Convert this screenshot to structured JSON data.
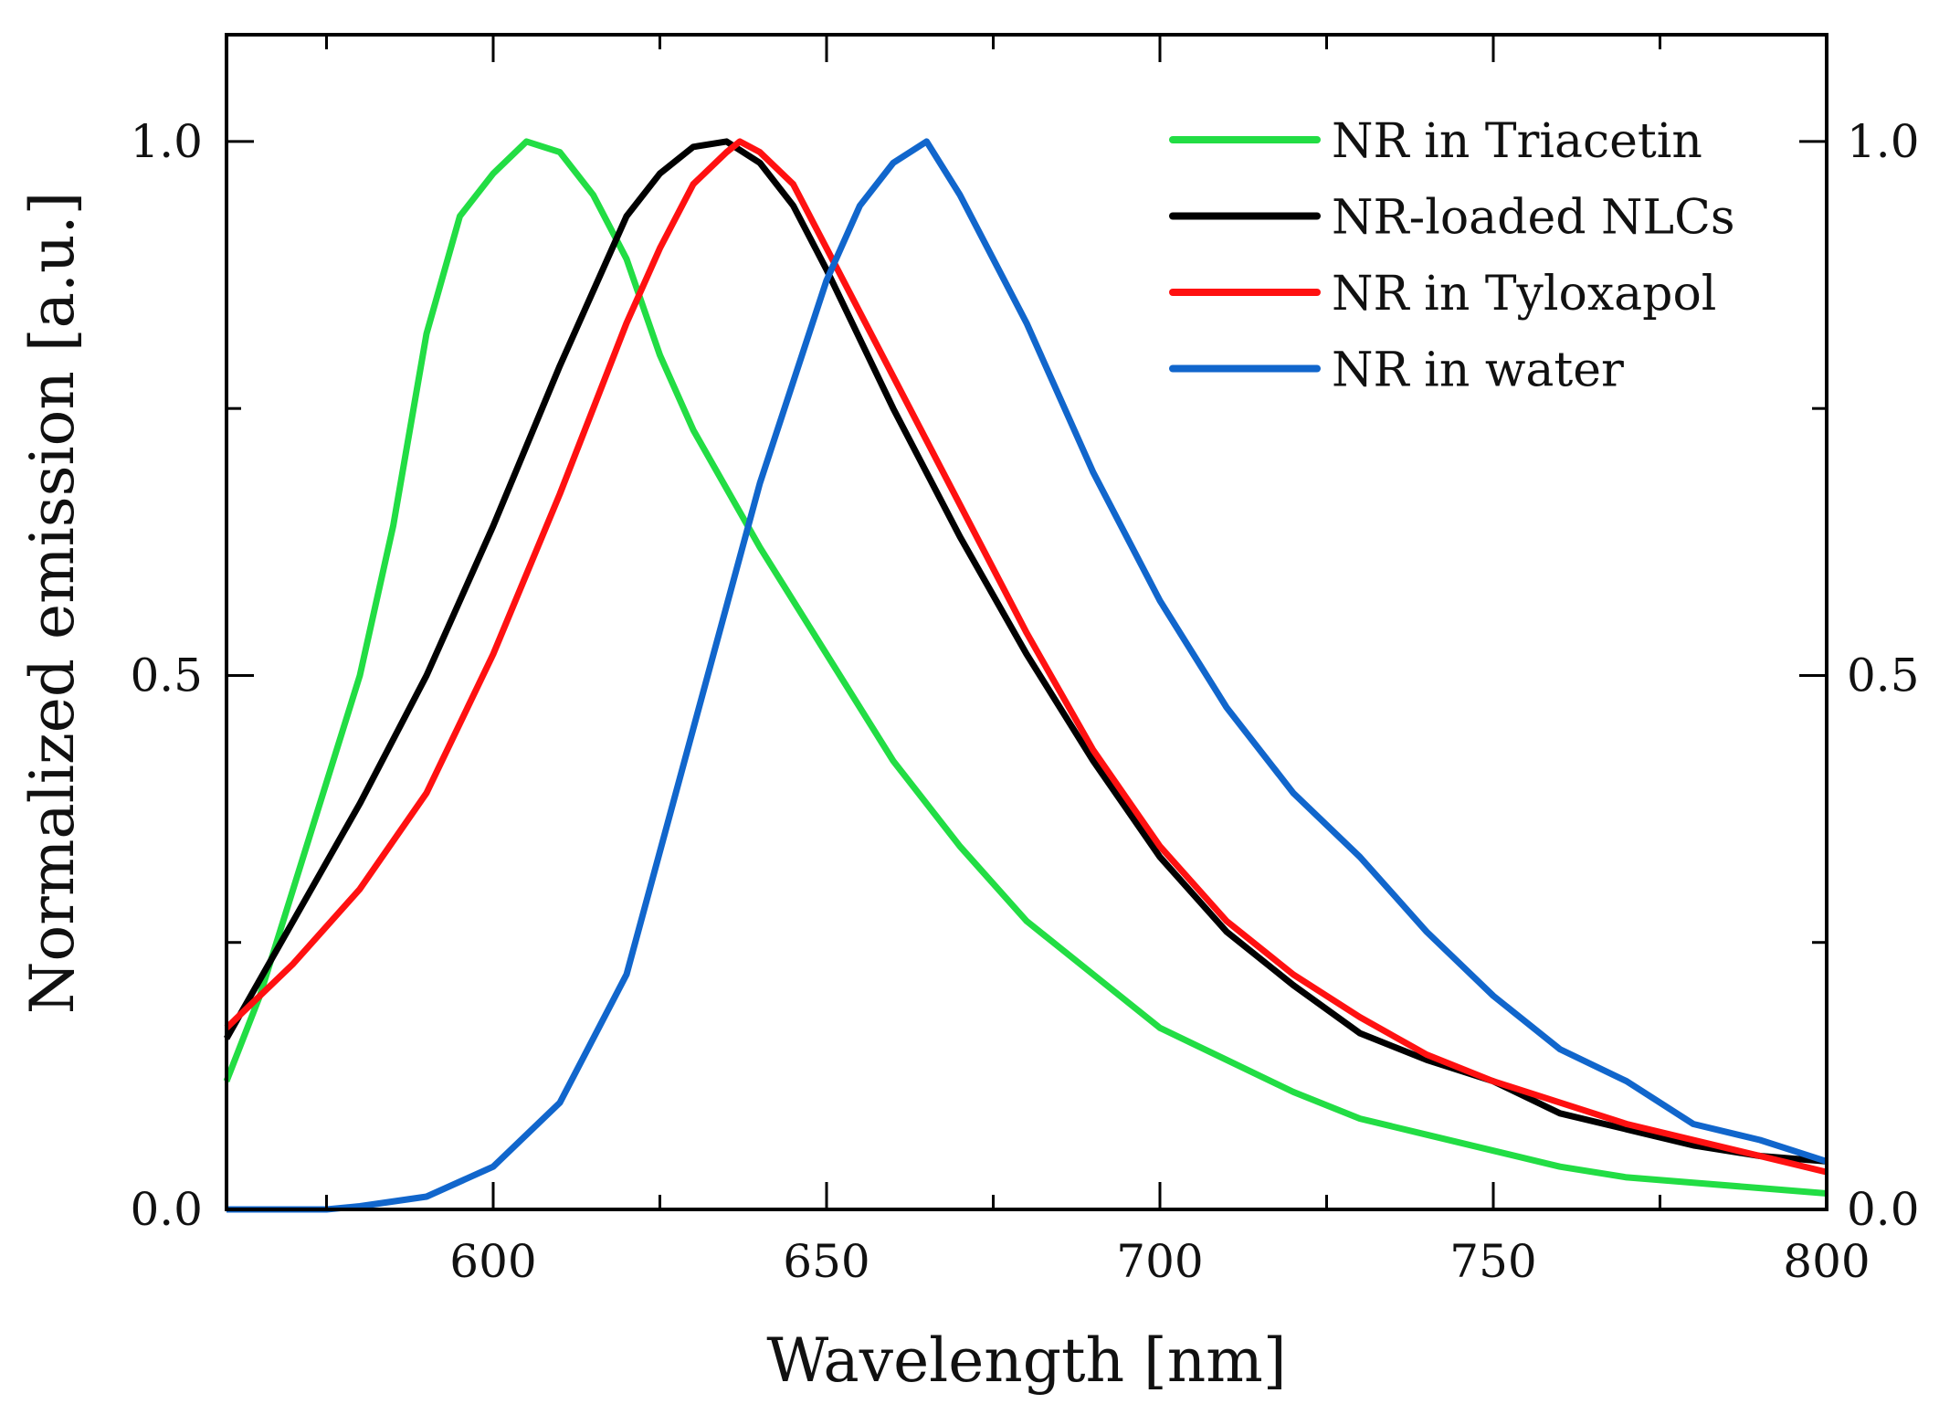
{
  "chart_data": {
    "type": "line",
    "title": "",
    "xlabel": "Wavelength [nm]",
    "ylabel": "Normalized emission [a.u.]",
    "xlim": [
      560,
      800
    ],
    "ylim": [
      0,
      1.1
    ],
    "x_ticks": [
      600,
      650,
      700,
      750,
      800
    ],
    "x_tick_labels": [
      "600",
      "650",
      "700",
      "750",
      "800"
    ],
    "x_minor_ticks": [
      575,
      625,
      675,
      725,
      775
    ],
    "y_ticks": [
      0,
      0.5,
      1.0
    ],
    "y_tick_labels": [
      "0.0",
      "0.5",
      "1.0"
    ],
    "y_minor_ticks": [
      0.25,
      0.75
    ],
    "grid": false,
    "legend_position": "top-right",
    "series": [
      {
        "name": "NR in Triacetin",
        "color": "#22dd44",
        "x": [
          560,
          565,
          570,
          575,
          580,
          585,
          590,
          595,
          600,
          605,
          610,
          615,
          620,
          625,
          630,
          640,
          650,
          660,
          670,
          680,
          690,
          700,
          710,
          720,
          730,
          740,
          750,
          760,
          770,
          780,
          790,
          800
        ],
        "y": [
          0.12,
          0.2,
          0.3,
          0.4,
          0.5,
          0.64,
          0.82,
          0.93,
          0.97,
          1.0,
          0.99,
          0.95,
          0.89,
          0.8,
          0.73,
          0.62,
          0.52,
          0.42,
          0.34,
          0.27,
          0.22,
          0.17,
          0.14,
          0.11,
          0.085,
          0.07,
          0.055,
          0.04,
          0.03,
          0.025,
          0.02,
          0.015
        ]
      },
      {
        "name": "NR-loaded NLCs",
        "color": "#000000",
        "x": [
          560,
          570,
          580,
          590,
          600,
          610,
          620,
          625,
          630,
          635,
          640,
          645,
          650,
          660,
          670,
          680,
          690,
          700,
          710,
          720,
          730,
          740,
          750,
          760,
          770,
          780,
          790,
          800
        ],
        "y": [
          0.16,
          0.27,
          0.38,
          0.5,
          0.64,
          0.79,
          0.93,
          0.97,
          0.995,
          1.0,
          0.98,
          0.94,
          0.88,
          0.75,
          0.63,
          0.52,
          0.42,
          0.33,
          0.26,
          0.21,
          0.165,
          0.14,
          0.12,
          0.09,
          0.075,
          0.06,
          0.05,
          0.045
        ]
      },
      {
        "name": "NR in Tyloxapol",
        "color": "#ff1111",
        "x": [
          560,
          570,
          580,
          590,
          600,
          610,
          620,
          625,
          630,
          635,
          637,
          640,
          645,
          650,
          660,
          670,
          680,
          690,
          700,
          710,
          720,
          730,
          740,
          750,
          760,
          770,
          780,
          790,
          800
        ],
        "y": [
          0.17,
          0.23,
          0.3,
          0.39,
          0.52,
          0.67,
          0.83,
          0.9,
          0.96,
          0.99,
          1.0,
          0.99,
          0.96,
          0.9,
          0.78,
          0.66,
          0.54,
          0.43,
          0.34,
          0.27,
          0.22,
          0.18,
          0.145,
          0.12,
          0.1,
          0.08,
          0.065,
          0.05,
          0.035
        ]
      },
      {
        "name": "NR in water",
        "color": "#1166cc",
        "x": [
          560,
          570,
          575,
          580,
          590,
          600,
          610,
          620,
          630,
          640,
          650,
          655,
          660,
          665,
          670,
          680,
          690,
          700,
          710,
          720,
          730,
          740,
          750,
          760,
          770,
          780,
          790,
          800
        ],
        "y": [
          0,
          0,
          0,
          0.003,
          0.012,
          0.04,
          0.1,
          0.22,
          0.45,
          0.68,
          0.87,
          0.94,
          0.98,
          1.0,
          0.95,
          0.83,
          0.69,
          0.57,
          0.47,
          0.39,
          0.33,
          0.26,
          0.2,
          0.15,
          0.12,
          0.08,
          0.065,
          0.045
        ]
      }
    ]
  }
}
